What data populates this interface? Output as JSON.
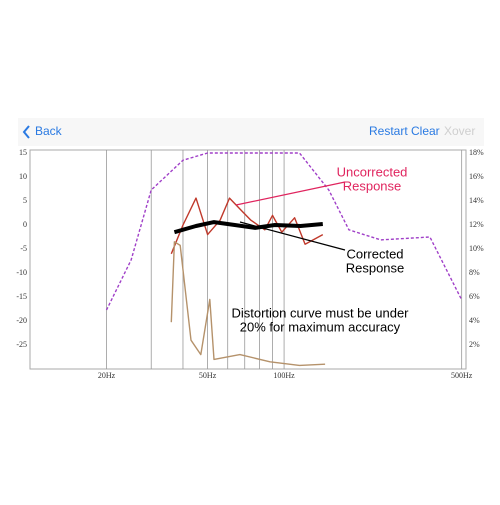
{
  "nav": {
    "back": "Back",
    "restart": "Restart",
    "clear": "Clear",
    "xover": "Xover"
  },
  "chart_data": {
    "type": "line",
    "x_scale": "log",
    "xlim": [
      10,
      520
    ],
    "ylim": [
      -30,
      15
    ],
    "y2lim": [
      0,
      18
    ],
    "xticks": [
      {
        "value": 20,
        "label": "20Hz"
      },
      {
        "value": 50,
        "label": "50Hz"
      },
      {
        "value": 100,
        "label": "100Hz"
      },
      {
        "value": 500,
        "label": "500Hz"
      }
    ],
    "xgrid": [
      20,
      30,
      40,
      50,
      60,
      70,
      80,
      90,
      100,
      500
    ],
    "yticks": [
      15,
      10,
      5,
      0,
      -5,
      -10,
      -15,
      -20,
      -25
    ],
    "y2ticks": [
      {
        "value": 18,
        "label": "18%"
      },
      {
        "value": 16,
        "label": "16%"
      },
      {
        "value": 14,
        "label": "14%"
      },
      {
        "value": 12,
        "label": "12%"
      },
      {
        "value": 10,
        "label": "10%"
      },
      {
        "value": 8,
        "label": "8%"
      },
      {
        "value": 6,
        "label": "6%"
      },
      {
        "value": 4,
        "label": "4%"
      },
      {
        "value": 2,
        "label": "2%"
      }
    ],
    "series": [
      {
        "color": "#a040c8",
        "dashed": true,
        "x": [
          20,
          25,
          30,
          40,
          50,
          115,
          150,
          180,
          240,
          375,
          500
        ],
        "values": [
          -17.7,
          -7.3,
          7.3,
          13.5,
          15,
          15,
          7.3,
          -1,
          -3.1,
          -2.5,
          -15.6
        ]
      },
      {
        "color": "#c0392b",
        "x": [
          36,
          40,
          45,
          50,
          56,
          61,
          68,
          74,
          84,
          90,
          98,
          110,
          121,
          142
        ],
        "values": [
          -6,
          0,
          5.6,
          -2,
          1,
          5.6,
          3,
          1,
          -1,
          2,
          -1.5,
          1.5,
          -4,
          -2
        ]
      },
      {
        "color": "#000000",
        "width": 4,
        "x": [
          37,
          45,
          53,
          64,
          77,
          92,
          116,
          142
        ],
        "values": [
          -1.5,
          -0.2,
          0.6,
          0,
          -0.6,
          0,
          -0.2,
          0.2
        ]
      },
      {
        "color": "#b5926b",
        "axis": "y2",
        "x": [
          36,
          37,
          39,
          43,
          47,
          51,
          53,
          67,
          88,
          115,
          145
        ],
        "values": [
          3.9,
          10.6,
          10.3,
          2.4,
          1.2,
          5.8,
          0.8,
          1.2,
          0.6,
          0.3,
          0.4
        ]
      }
    ],
    "annotations": [
      {
        "lines": [
          "Uncorrected",
          "Response"
        ],
        "color": "#e0245e"
      },
      {
        "lines": [
          "Corrected",
          "Response"
        ],
        "color": "#000000"
      },
      {
        "lines": [
          "Distortion curve must be under",
          "20% for maximum accuracy"
        ],
        "color": "#000000"
      }
    ]
  }
}
